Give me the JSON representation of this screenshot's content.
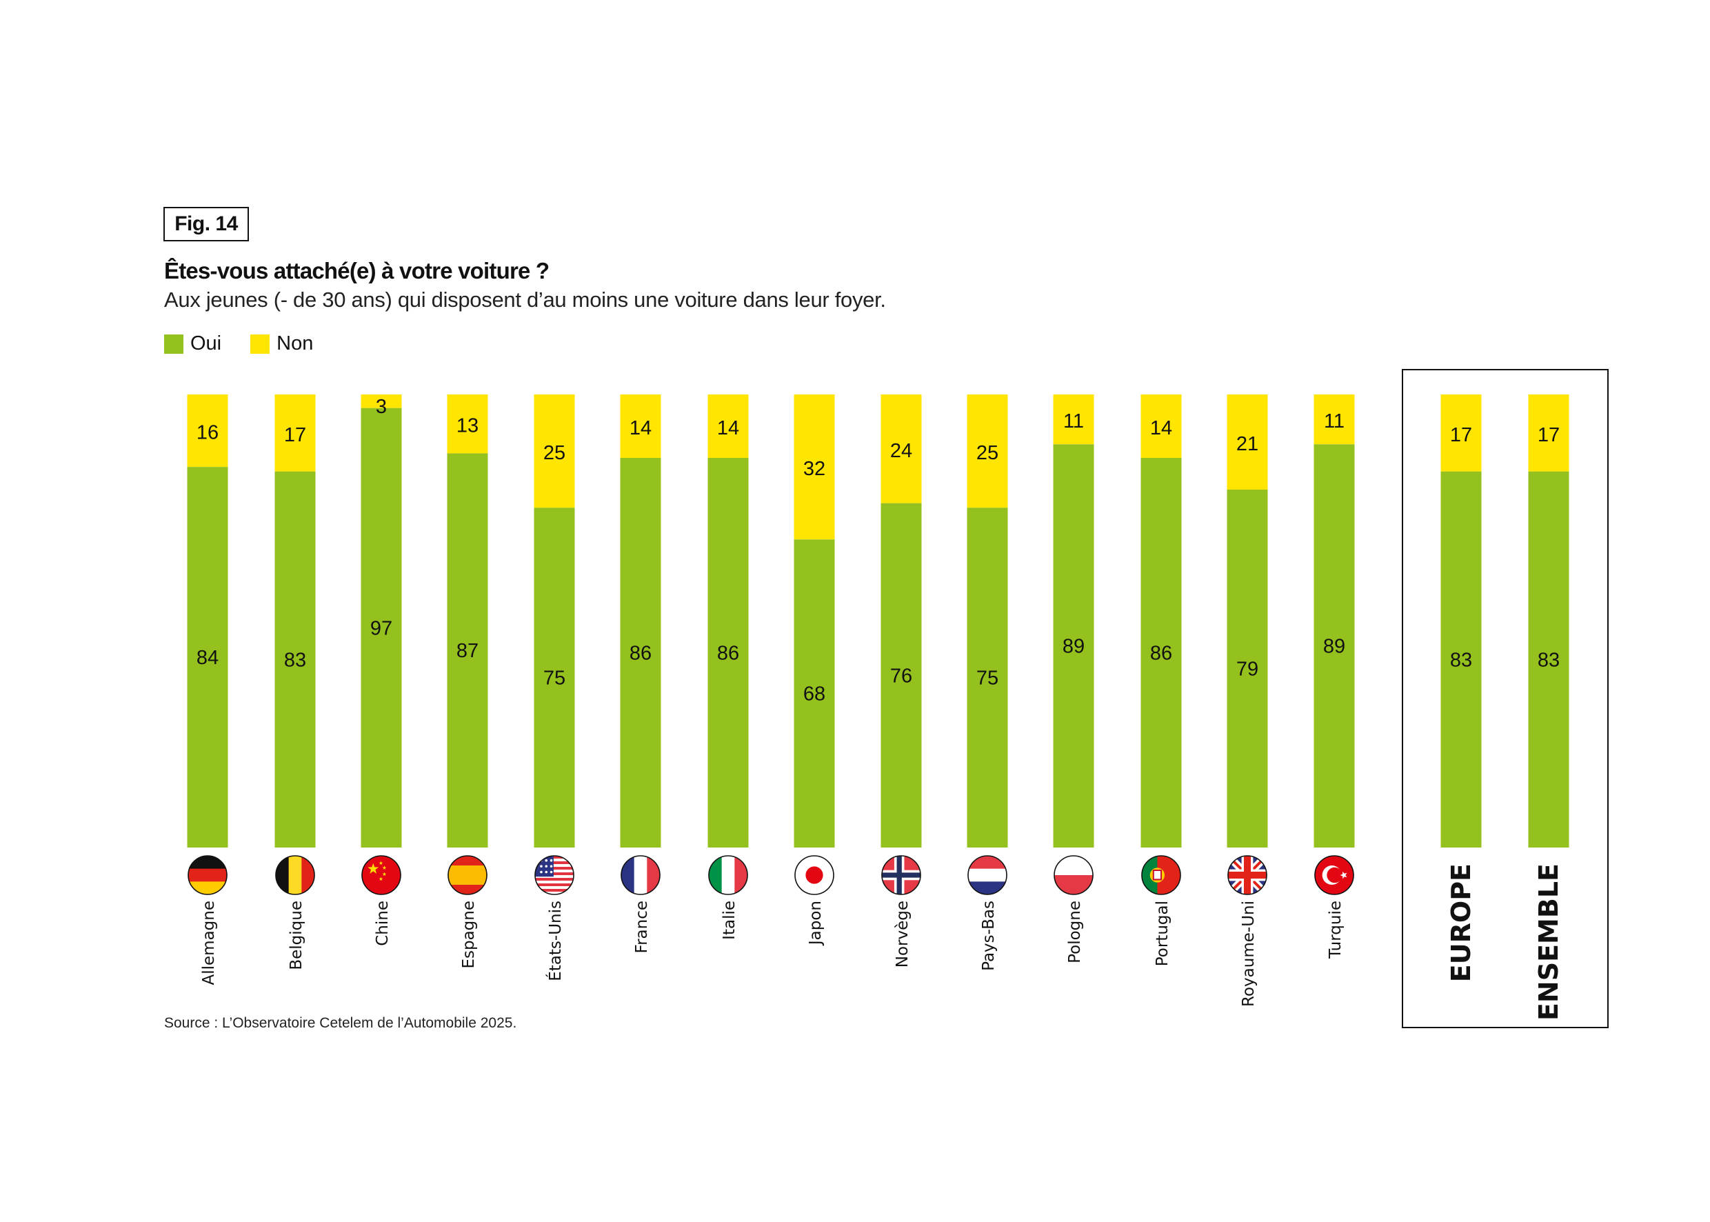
{
  "figure": {
    "label": "Fig. 14",
    "title": "Êtes-vous attaché(e) à votre voiture ?",
    "subtitle": "Aux jeunes (- de 30 ans) qui disposent d’au moins une voiture dans leur foyer.",
    "source": "Source : L’Observatoire Cetelem de l’Automobile 2025."
  },
  "colors": {
    "oui": "#95c11f",
    "non": "#ffe500",
    "box_border": "#111111"
  },
  "chart_data": {
    "type": "bar",
    "stacked": true,
    "orientation": "vertical",
    "title": "Êtes-vous attaché(e) à votre voiture ?",
    "subtitle": "Aux jeunes (- de 30 ans) qui disposent d’au moins une voiture dans leur foyer.",
    "xlabel": "",
    "ylabel": "",
    "ylim": [
      0,
      100
    ],
    "unit": "%",
    "grid": false,
    "legend_position": "top-left",
    "categories": [
      "Allemagne",
      "Belgique",
      "Chine",
      "Espagne",
      "États-Unis",
      "France",
      "Italie",
      "Japon",
      "Norvège",
      "Pays-Bas",
      "Pologne",
      "Portugal",
      "Royaume-Uni",
      "Turquie",
      "EUROPE",
      "ENSEMBLE"
    ],
    "flags": [
      "flag-germany",
      "flag-belgium",
      "flag-china",
      "flag-spain",
      "flag-usa",
      "flag-france",
      "flag-italy",
      "flag-japan",
      "flag-norway",
      "flag-netherlands",
      "flag-poland",
      "flag-portugal",
      "flag-uk",
      "flag-turkey",
      null,
      null
    ],
    "aggregate_group": [
      "EUROPE",
      "ENSEMBLE"
    ],
    "series": [
      {
        "name": "Oui",
        "values": [
          84,
          83,
          97,
          87,
          75,
          86,
          86,
          68,
          76,
          75,
          89,
          86,
          79,
          89,
          83,
          83
        ]
      },
      {
        "name": "Non",
        "values": [
          16,
          17,
          3,
          13,
          25,
          14,
          14,
          32,
          24,
          25,
          11,
          14,
          21,
          11,
          17,
          17
        ]
      }
    ]
  }
}
